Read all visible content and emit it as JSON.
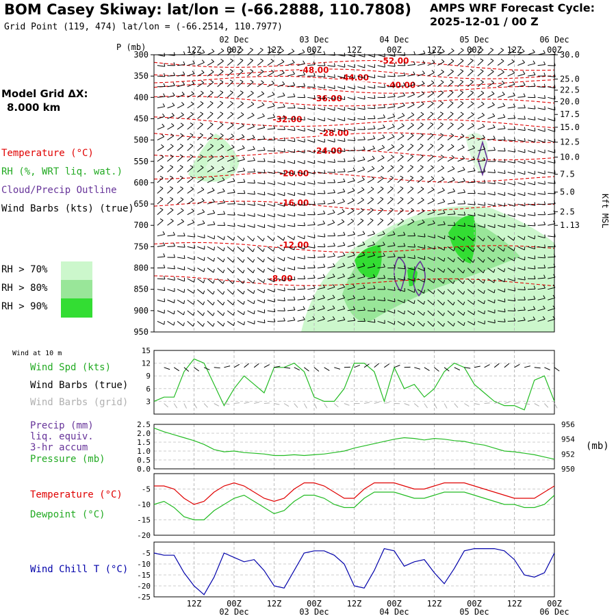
{
  "header": {
    "title": "BOM Casey Skiway:  lat/lon = (-66.2888, 110.7808)",
    "subtitle": "Grid Point (119, 474) lat/lon = (-66.2514, 110.7977)",
    "cycle_line1": "AMPS WRF Forecast Cycle:",
    "cycle_line2": "2025-12-01 / 00  Z"
  },
  "legend_left": {
    "model_grid_line1": "Model Grid ΔX:",
    "model_grid_line2": "8.000 km",
    "temperature": "Temperature (°C)",
    "rh": "RH (%, WRT liq. wat.)",
    "cloud": "Cloud/Precip Outline",
    "wind_barbs": "Wind Barbs (kts) (true)",
    "rh70": "RH > 70%",
    "rh80": "RH > 80%",
    "rh90": "RH > 90%"
  },
  "colors": {
    "temperature": "#e00000",
    "rh70": "#ccf7cc",
    "rh80": "#99e699",
    "rh90": "#33dd33",
    "cloud": "#663399",
    "wind_spd": "#22bb22",
    "wind_barbs_grid": "#b0b0b0",
    "precip": "#663399",
    "dewpoint": "#22bb22",
    "wind_chill": "#0000aa"
  },
  "time_axis": {
    "hour_labels": [
      "12Z",
      "00Z",
      "12Z",
      "00Z",
      "12Z",
      "00Z",
      "12Z",
      "00Z",
      "12Z",
      "00Z"
    ],
    "hour_values": [
      12,
      24,
      36,
      48,
      60,
      72,
      84,
      96,
      108,
      120
    ],
    "day_labels": [
      "02 Dec",
      "03 Dec",
      "04 Dec",
      "05 Dec",
      "06 Dec"
    ],
    "day_values": [
      24,
      48,
      72,
      96,
      120
    ],
    "range_hours": [
      0,
      120
    ]
  },
  "chart_data": [
    {
      "type": "heatmap",
      "name": "time-height cross section",
      "ylabel_left": "P (mb)",
      "ylabel_right": "Kft MSL",
      "y_ticks_pressure": [
        300,
        350,
        400,
        450,
        500,
        550,
        600,
        650,
        700,
        750,
        800,
        850,
        900,
        950
      ],
      "y_ticks_height_kft": [
        {
          "label": "30.0",
          "p": 300
        },
        {
          "label": "25.0",
          "p": 357
        },
        {
          "label": "22.5",
          "p": 383
        },
        {
          "label": "20.0",
          "p": 410
        },
        {
          "label": "17.5",
          "p": 440
        },
        {
          "label": "15.0",
          "p": 470
        },
        {
          "label": "12.5",
          "p": 505
        },
        {
          "label": "10.0",
          "p": 540
        },
        {
          "label": "7.5",
          "p": 580
        },
        {
          "label": "5.0",
          "p": 622
        },
        {
          "label": "2.5",
          "p": 668
        },
        {
          "label": "1.13",
          "p": 700
        }
      ],
      "ylim": [
        300,
        950
      ],
      "temperature_contours": [
        {
          "label": "-52.00",
          "x": 72,
          "p": 318
        },
        {
          "label": "-48.00",
          "x": 48,
          "p": 339
        },
        {
          "label": "-44.00",
          "x": 60,
          "p": 357
        },
        {
          "label": "-40.00",
          "x": 74,
          "p": 375
        },
        {
          "label": "-36.00",
          "x": 52,
          "p": 406
        },
        {
          "label": "-32.00",
          "x": 40,
          "p": 455
        },
        {
          "label": "-28.00",
          "x": 54,
          "p": 487
        },
        {
          "label": "-24.00",
          "x": 52,
          "p": 529
        },
        {
          "label": "-20.00",
          "x": 42,
          "p": 582
        },
        {
          "label": "-16.00",
          "x": 42,
          "p": 651
        },
        {
          "label": "-12.00",
          "x": 42,
          "p": 749
        },
        {
          "label": "-8.00",
          "x": 38,
          "p": 828
        }
      ]
    },
    {
      "type": "line",
      "name": "wind-at-10m",
      "label": "Wind at 10 m",
      "series_labels": [
        "Wind Spd (kts)",
        "Wind Barbs (true)",
        "Wind Barbs (grid)"
      ],
      "ylim": [
        0,
        15
      ],
      "y_ticks": [
        3,
        6,
        9,
        12,
        15
      ],
      "x": [
        0,
        3,
        6,
        9,
        12,
        15,
        18,
        21,
        24,
        27,
        30,
        33,
        36,
        39,
        42,
        45,
        48,
        51,
        54,
        57,
        60,
        63,
        66,
        69,
        72,
        75,
        78,
        81,
        84,
        87,
        90,
        93,
        96,
        99,
        102,
        105,
        108,
        111,
        114,
        117,
        120
      ],
      "wind_speed": [
        3,
        4,
        4,
        10,
        13,
        12,
        7,
        2,
        6,
        9,
        7,
        5,
        11,
        11,
        12,
        10,
        4,
        3,
        3,
        6,
        12,
        12,
        10,
        3,
        11,
        6,
        7,
        4,
        6,
        10,
        12,
        11,
        7,
        5,
        3,
        2,
        2,
        1,
        8,
        9,
        3
      ]
    },
    {
      "type": "line",
      "name": "precip-pressure",
      "series_labels": [
        "Precip (mm)",
        "liq. equiv.",
        "3-hr accum",
        "Pressure (mb)"
      ],
      "ylim_left": [
        0,
        2.5
      ],
      "y_ticks_left": [
        "0.0",
        "0.5",
        "1.0",
        "1.5",
        "2.0",
        "2.5"
      ],
      "ylim_right": [
        950,
        956
      ],
      "y_ticks_right": [
        "950",
        "952",
        "954",
        "956"
      ],
      "right_unit": "(mb)",
      "x": [
        0,
        3,
        6,
        9,
        12,
        15,
        18,
        21,
        24,
        27,
        30,
        33,
        36,
        39,
        42,
        45,
        48,
        51,
        54,
        57,
        60,
        63,
        66,
        69,
        72,
        75,
        78,
        81,
        84,
        87,
        90,
        93,
        96,
        99,
        102,
        105,
        108,
        111,
        114,
        117,
        120
      ],
      "pressure_mb": [
        955.5,
        955.0,
        954.6,
        954.2,
        953.8,
        953.3,
        952.6,
        952.3,
        952.4,
        952.2,
        952.1,
        952.0,
        951.8,
        951.8,
        951.9,
        951.8,
        951.9,
        952.0,
        952.2,
        952.4,
        952.8,
        953.1,
        953.4,
        953.7,
        954.0,
        954.2,
        954.1,
        953.9,
        954.1,
        954.0,
        953.8,
        953.7,
        953.4,
        953.2,
        952.8,
        952.4,
        952.3,
        952.1,
        951.9,
        951.6,
        951.3
      ],
      "precip_mm": [
        0,
        0,
        0,
        0,
        0,
        0,
        0,
        0,
        0,
        0,
        0,
        0,
        0,
        0,
        0,
        0,
        0,
        0,
        0,
        0,
        0,
        0,
        0,
        0,
        0,
        0,
        0,
        0,
        0,
        0,
        0,
        0,
        0,
        0,
        0,
        0,
        0,
        0,
        0,
        0,
        0
      ]
    },
    {
      "type": "line",
      "name": "temperature-dewpoint",
      "series_labels": [
        "Temperature (°C)",
        "Dewpoint (°C)"
      ],
      "ylim": [
        -20,
        0
      ],
      "y_ticks": [
        "-5",
        "-10",
        "-15",
        "-20"
      ],
      "x": [
        0,
        3,
        6,
        9,
        12,
        15,
        18,
        21,
        24,
        27,
        30,
        33,
        36,
        39,
        42,
        45,
        48,
        51,
        54,
        57,
        60,
        63,
        66,
        69,
        72,
        75,
        78,
        81,
        84,
        87,
        90,
        93,
        96,
        99,
        102,
        105,
        108,
        111,
        114,
        117,
        120
      ],
      "temperature": [
        -4,
        -4,
        -5,
        -8,
        -10,
        -9,
        -6,
        -4,
        -3,
        -4,
        -6,
        -8,
        -9,
        -8,
        -5,
        -3,
        -3,
        -4,
        -6,
        -8,
        -8,
        -5,
        -3,
        -3,
        -3,
        -4,
        -5,
        -5,
        -4,
        -3,
        -3,
        -3,
        -4,
        -5,
        -6,
        -7,
        -8,
        -8,
        -8,
        -6,
        -4
      ],
      "dewpoint": [
        -10,
        -9,
        -11,
        -14,
        -15,
        -15,
        -12,
        -10,
        -8,
        -7,
        -9,
        -11,
        -13,
        -12,
        -9,
        -7,
        -7,
        -8,
        -10,
        -11,
        -11,
        -8,
        -6,
        -6,
        -6,
        -7,
        -8,
        -8,
        -7,
        -6,
        -6,
        -6,
        -7,
        -8,
        -9,
        -10,
        -10,
        -11,
        -11,
        -10,
        -7
      ]
    },
    {
      "type": "line",
      "name": "wind-chill",
      "series_labels": [
        "Wind Chill T (°C)"
      ],
      "ylim": [
        -25,
        0
      ],
      "y_ticks": [
        "-5",
        "-10",
        "-15",
        "-20",
        "-25"
      ],
      "x": [
        0,
        3,
        6,
        9,
        12,
        15,
        18,
        21,
        24,
        27,
        30,
        33,
        36,
        39,
        42,
        45,
        48,
        51,
        54,
        57,
        60,
        63,
        66,
        69,
        72,
        75,
        78,
        81,
        84,
        87,
        90,
        93,
        96,
        99,
        102,
        105,
        108,
        111,
        114,
        117,
        120
      ],
      "wind_chill": [
        -5,
        -6,
        -6,
        -14,
        -20,
        -24,
        -16,
        -5,
        -7,
        -9,
        -8,
        -13,
        -20,
        -21,
        -13,
        -5,
        -4,
        -4,
        -6,
        -10,
        -20,
        -21,
        -13,
        -3,
        -4,
        -11,
        -9,
        -8,
        -14,
        -19,
        -12,
        -4,
        -3,
        -3,
        -3,
        -4,
        -8,
        -15,
        -16,
        -14,
        -5
      ]
    }
  ]
}
